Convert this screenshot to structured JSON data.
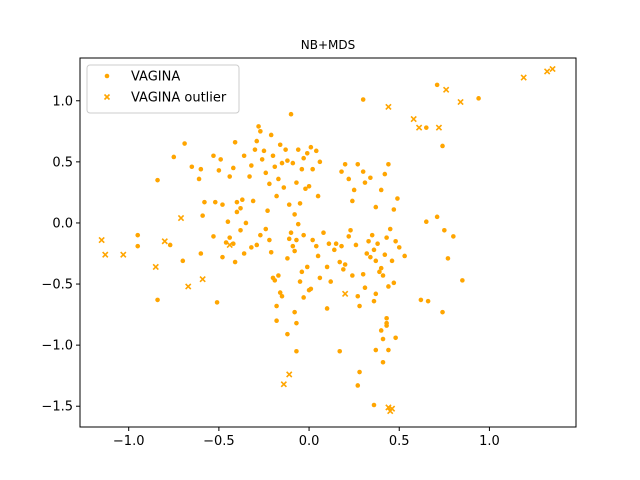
{
  "chart_data": {
    "type": "scatter",
    "title": "NB+MDS",
    "xlabel": "",
    "ylabel": "",
    "xlim": [
      -1.27,
      1.48
    ],
    "ylim": [
      -1.67,
      1.35
    ],
    "xticks": [
      {
        "value": -1.0,
        "label": "−1.0"
      },
      {
        "value": -0.5,
        "label": "−0.5"
      },
      {
        "value": 0.0,
        "label": "0.0"
      },
      {
        "value": 0.5,
        "label": "0.5"
      },
      {
        "value": 1.0,
        "label": "1.0"
      }
    ],
    "yticks": [
      {
        "value": -1.5,
        "label": "−1.5"
      },
      {
        "value": -1.0,
        "label": "−1.0"
      },
      {
        "value": -0.5,
        "label": "−0.5"
      },
      {
        "value": 0.0,
        "label": "0.0"
      },
      {
        "value": 0.5,
        "label": "0.5"
      },
      {
        "value": 1.0,
        "label": "1.0"
      }
    ],
    "grid": false,
    "legend": "top-left",
    "series": [
      {
        "name": "VAGINA",
        "marker": "circle",
        "color": "#FFA500",
        "points": [
          [
            0.3,
            1.01
          ],
          [
            0.71,
            1.13
          ],
          [
            0.94,
            1.02
          ],
          [
            0.65,
            0.78
          ],
          [
            0.74,
            0.63
          ],
          [
            -0.84,
            0.35
          ],
          [
            -0.75,
            0.54
          ],
          [
            -0.69,
            0.65
          ],
          [
            -0.65,
            0.46
          ],
          [
            -0.61,
            0.36
          ],
          [
            -0.6,
            0.44
          ],
          [
            -0.59,
            0.06
          ],
          [
            -0.58,
            0.17
          ],
          [
            -0.53,
            0.55
          ],
          [
            -0.52,
            0.17
          ],
          [
            -0.5,
            0.43
          ],
          [
            -0.49,
            0.52
          ],
          [
            -0.48,
            0.15
          ],
          [
            -0.45,
            0.01
          ],
          [
            -0.44,
            0.38
          ],
          [
            -0.42,
            0.45
          ],
          [
            -0.41,
            0.66
          ],
          [
            -0.4,
            0.17
          ],
          [
            -0.4,
            0.09
          ],
          [
            -0.38,
            0.12
          ],
          [
            -0.37,
            0.19
          ],
          [
            -0.36,
            0.55
          ],
          [
            -0.35,
            0.0
          ],
          [
            -0.33,
            0.38
          ],
          [
            -0.32,
            0.47
          ],
          [
            -0.31,
            0.18
          ],
          [
            -0.3,
            0.6
          ],
          [
            -0.29,
            0.67
          ],
          [
            -0.28,
            0.79
          ],
          [
            -0.27,
            0.75
          ],
          [
            -0.26,
            0.52
          ],
          [
            -0.25,
            0.59
          ],
          [
            -0.24,
            0.41
          ],
          [
            -0.23,
            0.1
          ],
          [
            -0.22,
            0.32
          ],
          [
            -0.21,
            0.72
          ],
          [
            -0.2,
            0.55
          ],
          [
            -0.19,
            0.46
          ],
          [
            -0.18,
            0.22
          ],
          [
            -0.17,
            0.36
          ],
          [
            -0.16,
            0.64
          ],
          [
            -0.15,
            0.49
          ],
          [
            -0.14,
            0.29
          ],
          [
            -0.13,
            0.6
          ],
          [
            -0.12,
            0.51
          ],
          [
            -0.11,
            0.15
          ],
          [
            -0.1,
            0.89
          ],
          [
            -0.09,
            0.49
          ],
          [
            -0.08,
            0.07
          ],
          [
            -0.07,
            0.33
          ],
          [
            -0.06,
            0.6
          ],
          [
            -0.05,
            0.16
          ],
          [
            -0.04,
            0.44
          ],
          [
            -0.03,
            0.53
          ],
          [
            -0.02,
            0.28
          ],
          [
            -0.01,
            0.57
          ],
          [
            0.0,
            0.3
          ],
          [
            0.01,
            0.62
          ],
          [
            0.02,
            0.44
          ],
          [
            0.04,
            0.59
          ],
          [
            0.05,
            0.22
          ],
          [
            0.06,
            0.5
          ],
          [
            -0.95,
            -0.1
          ],
          [
            -0.95,
            -0.19
          ],
          [
            -0.77,
            -0.18
          ],
          [
            -0.7,
            -0.31
          ],
          [
            -0.6,
            -0.25
          ],
          [
            -0.53,
            -0.11
          ],
          [
            -0.48,
            -0.28
          ],
          [
            -0.46,
            -0.16
          ],
          [
            -0.44,
            -0.12
          ],
          [
            -0.42,
            -0.17
          ],
          [
            -0.41,
            -0.32
          ],
          [
            -0.38,
            -0.06
          ],
          [
            -0.36,
            -0.25
          ],
          [
            -0.32,
            -0.2
          ],
          [
            -0.29,
            -0.18
          ],
          [
            -0.27,
            -0.1
          ],
          [
            -0.24,
            -0.05
          ],
          [
            -0.22,
            -0.14
          ],
          [
            -0.21,
            -0.24
          ],
          [
            -0.2,
            -0.45
          ],
          [
            -0.19,
            -0.47
          ],
          [
            -0.18,
            -0.68
          ],
          [
            -0.17,
            -0.43
          ],
          [
            -0.16,
            -0.57
          ],
          [
            -0.15,
            -0.6
          ],
          [
            -0.12,
            -0.29
          ],
          [
            -0.11,
            -0.13
          ],
          [
            -0.1,
            -0.08
          ],
          [
            -0.09,
            -0.19
          ],
          [
            -0.08,
            -0.23
          ],
          [
            -0.07,
            -0.14
          ],
          [
            -0.06,
            -0.01
          ],
          [
            -0.05,
            -0.48
          ],
          [
            -0.04,
            -0.4
          ],
          [
            -0.03,
            -0.1
          ],
          [
            -0.01,
            -0.36
          ],
          [
            0.01,
            -0.54
          ],
          [
            0.02,
            -0.14
          ],
          [
            0.04,
            -0.19
          ],
          [
            0.05,
            -0.27
          ],
          [
            0.06,
            -0.45
          ],
          [
            0.08,
            -0.08
          ],
          [
            0.1,
            -0.36
          ],
          [
            0.11,
            -0.17
          ],
          [
            0.12,
            -0.48
          ],
          [
            0.14,
            -0.22
          ],
          [
            0.15,
            -0.17
          ],
          [
            0.17,
            -0.32
          ],
          [
            0.18,
            -0.19
          ],
          [
            0.19,
            -0.38
          ],
          [
            0.2,
            -0.34
          ],
          [
            0.22,
            -0.11
          ],
          [
            0.23,
            -0.06
          ],
          [
            0.24,
            -0.43
          ],
          [
            0.26,
            -0.18
          ],
          [
            0.27,
            -0.6
          ],
          [
            0.28,
            -0.68
          ],
          [
            0.3,
            -0.42
          ],
          [
            0.31,
            -0.53
          ],
          [
            0.32,
            -0.25
          ],
          [
            0.33,
            -0.15
          ],
          [
            0.34,
            -0.28
          ],
          [
            0.35,
            -0.1
          ],
          [
            0.36,
            -0.22
          ],
          [
            0.37,
            -0.31
          ],
          [
            0.38,
            -0.17
          ],
          [
            0.39,
            -0.4
          ],
          [
            0.4,
            -0.37
          ],
          [
            0.41,
            -0.43
          ],
          [
            0.42,
            -0.26
          ],
          [
            0.43,
            -0.12
          ],
          [
            0.44,
            -0.52
          ],
          [
            0.45,
            -0.05
          ],
          [
            0.46,
            -0.31
          ],
          [
            0.47,
            -0.49
          ],
          [
            0.48,
            -0.15
          ],
          [
            0.5,
            -0.2
          ],
          [
            0.53,
            -0.27
          ],
          [
            0.37,
            -0.58
          ],
          [
            0.36,
            -0.64
          ],
          [
            0.18,
            0.42
          ],
          [
            0.2,
            0.48
          ],
          [
            0.22,
            0.36
          ],
          [
            0.24,
            0.18
          ],
          [
            0.25,
            0.27
          ],
          [
            0.27,
            0.48
          ],
          [
            0.3,
            0.42
          ],
          [
            0.31,
            0.33
          ],
          [
            0.34,
            0.37
          ],
          [
            0.37,
            0.13
          ],
          [
            0.4,
            0.27
          ],
          [
            0.42,
            0.4
          ],
          [
            0.44,
            0.48
          ],
          [
            0.47,
            0.11
          ],
          [
            0.49,
            0.2
          ],
          [
            0.62,
            -0.63
          ],
          [
            0.66,
            -0.64
          ],
          [
            0.65,
            0.01
          ],
          [
            0.71,
            0.05
          ],
          [
            0.75,
            -0.06
          ],
          [
            0.77,
            -0.29
          ],
          [
            0.8,
            -0.11
          ],
          [
            0.85,
            -0.47
          ],
          [
            0.74,
            -0.73
          ],
          [
            -0.84,
            -0.63
          ],
          [
            -0.51,
            -0.65
          ],
          [
            -0.18,
            -0.8
          ],
          [
            -0.08,
            -0.73
          ],
          [
            -0.07,
            -0.82
          ],
          [
            -0.03,
            -0.61
          ],
          [
            0.0,
            -0.55
          ],
          [
            -0.12,
            -0.91
          ],
          [
            -0.07,
            -1.05
          ],
          [
            0.17,
            -1.05
          ],
          [
            0.1,
            -0.7
          ],
          [
            0.28,
            -1.22
          ],
          [
            0.27,
            -1.33
          ],
          [
            0.36,
            -1.49
          ],
          [
            0.37,
            -1.04
          ],
          [
            0.4,
            -0.88
          ],
          [
            0.41,
            -0.95
          ],
          [
            0.41,
            -1.14
          ],
          [
            0.43,
            -0.78
          ],
          [
            0.43,
            -0.82
          ],
          [
            0.43,
            -0.84
          ],
          [
            0.44,
            -1.04
          ],
          [
            0.48,
            -0.94
          ]
        ]
      },
      {
        "name": "VAGINA outlier",
        "marker": "x",
        "color": "#FFA500",
        "points": [
          [
            -1.15,
            -0.14
          ],
          [
            -1.13,
            -0.26
          ],
          [
            -1.03,
            -0.26
          ],
          [
            -0.85,
            -0.36
          ],
          [
            -0.8,
            -0.15
          ],
          [
            -0.71,
            0.04
          ],
          [
            -0.67,
            -0.52
          ],
          [
            -0.59,
            -0.46
          ],
          [
            -0.44,
            -0.18
          ],
          [
            -0.14,
            -1.32
          ],
          [
            -0.11,
            -1.24
          ],
          [
            0.2,
            -0.58
          ],
          [
            0.44,
            -1.51
          ],
          [
            0.45,
            -1.54
          ],
          [
            0.46,
            -1.52
          ],
          [
            0.44,
            0.95
          ],
          [
            0.58,
            0.85
          ],
          [
            0.61,
            0.78
          ],
          [
            0.72,
            0.78
          ],
          [
            0.76,
            1.09
          ],
          [
            0.84,
            0.99
          ],
          [
            1.19,
            1.19
          ],
          [
            1.32,
            1.24
          ],
          [
            1.35,
            1.26
          ]
        ]
      }
    ]
  }
}
